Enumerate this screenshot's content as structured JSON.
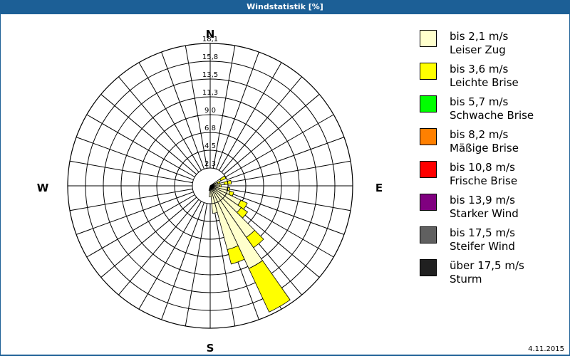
{
  "window": {
    "title": "Windstatistik [%]",
    "date": "4.11.2015"
  },
  "cardinals": {
    "n": "N",
    "e": "E",
    "s": "S",
    "w": "W"
  },
  "rings": [
    "2,3",
    "4,5",
    "6,8",
    "9,0",
    "11,3",
    "13,5",
    "15,8",
    "18,1"
  ],
  "legend": [
    {
      "range": "bis 2,1 m/s",
      "name": "Leiser Zug",
      "color": "#ffffcc"
    },
    {
      "range": "bis 3,6 m/s",
      "name": "Leichte Brise",
      "color": "#ffff00"
    },
    {
      "range": "bis 5,7 m/s",
      "name": "Schwache Brise",
      "color": "#00ff00"
    },
    {
      "range": "bis 8,2 m/s",
      "name": "Mäßige Brise",
      "color": "#ff8000"
    },
    {
      "range": "bis 10,8 m/s",
      "name": "Frische Brise",
      "color": "#ff0000"
    },
    {
      "range": "bis 13,9 m/s",
      "name": "Starker Wind",
      "color": "#800080"
    },
    {
      "range": "bis 17,5 m/s",
      "name": "Steifer Wind",
      "color": "#606060"
    },
    {
      "range": "über 17,5 m/s",
      "name": "Sturm",
      "color": "#202020"
    }
  ],
  "chart_data": {
    "type": "polar-bar (wind rose)",
    "title": "Windstatistik [%]",
    "unit": "%",
    "radial_max": 18.1,
    "radial_ticks": [
      2.3,
      4.5,
      6.8,
      9.0,
      11.3,
      13.5,
      15.8,
      18.1
    ],
    "sector_width_deg": 10,
    "series_names": [
      "bis 2,1 m/s",
      "bis 3,6 m/s"
    ],
    "sectors": [
      {
        "dir_deg": 60,
        "values": [
          1.5,
          0.7
        ]
      },
      {
        "dir_deg": 70,
        "values": [
          1.0,
          0.3
        ]
      },
      {
        "dir_deg": 80,
        "values": [
          1.8,
          0.9
        ]
      },
      {
        "dir_deg": 90,
        "values": [
          1.2,
          0.2
        ]
      },
      {
        "dir_deg": 100,
        "values": [
          2.2,
          0.3
        ]
      },
      {
        "dir_deg": 110,
        "values": [
          2.6,
          0.5
        ]
      },
      {
        "dir_deg": 120,
        "values": [
          4.3,
          0.9
        ]
      },
      {
        "dir_deg": 130,
        "values": [
          4.8,
          1.0
        ]
      },
      {
        "dir_deg": 140,
        "values": [
          8.0,
          1.6
        ]
      },
      {
        "dir_deg": 150,
        "values": [
          11.6,
          6.1
        ]
      },
      {
        "dir_deg": 160,
        "values": [
          8.4,
          1.9
        ]
      },
      {
        "dir_deg": 170,
        "values": [
          3.5,
          0.0
        ]
      },
      {
        "dir_deg": 180,
        "values": [
          1.4,
          0.0
        ]
      },
      {
        "dir_deg": 190,
        "values": [
          0.6,
          0.0
        ]
      }
    ]
  }
}
